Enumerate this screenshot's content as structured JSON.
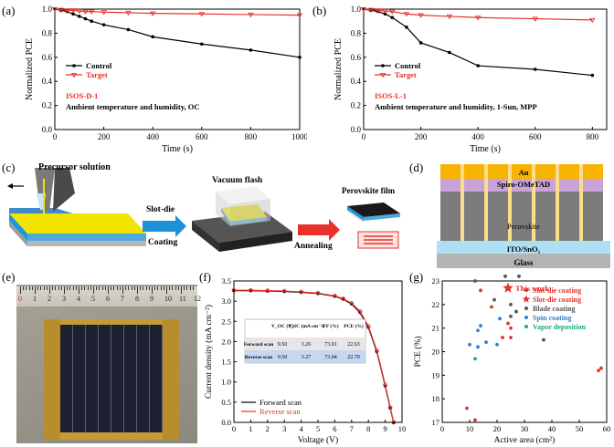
{
  "panels": {
    "a": {
      "label": "(a)"
    },
    "b": {
      "label": "(b)"
    },
    "c": {
      "label": "(c)"
    },
    "d": {
      "label": "(d)"
    },
    "e": {
      "label": "(e)"
    },
    "f": {
      "label": "(f)"
    },
    "g": {
      "label": "(g)"
    }
  },
  "panel_c": {
    "precursor": "Precursor solution",
    "vacuum": "Vacuum flash",
    "slot_die": "Slot-die",
    "coating": "Coating",
    "annealing": "Annealing",
    "film": "Perovskite film"
  },
  "panel_d": {
    "layers": [
      "Au",
      "Spiro-OMeTAD",
      "Perovskite",
      "ITO/SnO₂",
      "Glass"
    ]
  },
  "panel_e": {
    "ruler_numbers": [
      "0",
      "1",
      "2",
      "3",
      "4",
      "5",
      "6",
      "7",
      "8",
      "9",
      "10",
      "11",
      "12"
    ]
  },
  "colors": {
    "control": "#000000",
    "target": "#e8312a",
    "accent_red": "#e8312a"
  },
  "chart_data": [
    {
      "type": "line",
      "panel": "a",
      "xlabel": "Time (s)",
      "ylabel": "Normalized PCE",
      "xlim": [
        0,
        1000
      ],
      "ylim": [
        0.0,
        1.0
      ],
      "xticks": [
        "0",
        "200",
        "400",
        "600",
        "800",
        "1000"
      ],
      "yticks": [
        "0.0",
        "0.2",
        "0.4",
        "0.6",
        "0.8",
        "1.0"
      ],
      "annotation_title": "ISOS-D-1",
      "annotation_sub": "Ambient temperature and humidity, OC",
      "series": [
        {
          "name": "Control",
          "x": [
            0,
            25,
            50,
            75,
            100,
            125,
            150,
            200,
            300,
            400,
            600,
            800,
            1000
          ],
          "y": [
            1.0,
            0.99,
            0.98,
            0.96,
            0.94,
            0.92,
            0.9,
            0.87,
            0.83,
            0.77,
            0.71,
            0.66,
            0.6
          ]
        },
        {
          "name": "Target",
          "x": [
            0,
            25,
            50,
            75,
            100,
            125,
            150,
            200,
            300,
            400,
            600,
            800,
            1000
          ],
          "y": [
            1.0,
            0.995,
            0.99,
            0.99,
            0.985,
            0.98,
            0.98,
            0.975,
            0.97,
            0.965,
            0.96,
            0.955,
            0.95
          ]
        }
      ]
    },
    {
      "type": "line",
      "panel": "b",
      "xlabel": "Time (s)",
      "ylabel": "Normalized PCE",
      "xlim": [
        0,
        850
      ],
      "ylim": [
        0.0,
        1.0
      ],
      "xticks": [
        "0",
        "200",
        "400",
        "600",
        "800"
      ],
      "yticks": [
        "0.0",
        "0.2",
        "0.4",
        "0.6",
        "0.8",
        "1.0"
      ],
      "annotation_title": "ISOS-L-1",
      "annotation_sub": "Ambient temperature and humidity, 1-Sun, MPP",
      "series": [
        {
          "name": "Control",
          "x": [
            0,
            25,
            50,
            75,
            100,
            150,
            200,
            300,
            400,
            600,
            800
          ],
          "y": [
            1.0,
            0.99,
            0.98,
            0.96,
            0.93,
            0.85,
            0.72,
            0.64,
            0.53,
            0.5,
            0.45
          ]
        },
        {
          "name": "Target",
          "x": [
            0,
            25,
            50,
            75,
            100,
            150,
            200,
            300,
            400,
            600,
            800
          ],
          "y": [
            1.0,
            0.995,
            0.99,
            0.985,
            0.98,
            0.96,
            0.95,
            0.94,
            0.93,
            0.92,
            0.91
          ]
        }
      ]
    },
    {
      "type": "line",
      "panel": "f",
      "xlabel": "Voltage (V)",
      "ylabel": "Current density (mA cm⁻²)",
      "xlim": [
        0,
        10
      ],
      "ylim": [
        0.0,
        3.5
      ],
      "xticks": [
        "0",
        "1",
        "2",
        "3",
        "4",
        "5",
        "6",
        "7",
        "8",
        "9",
        "10"
      ],
      "yticks": [
        "0.0",
        "0.5",
        "1.0",
        "1.5",
        "2.0",
        "2.5",
        "3.0",
        "3.5"
      ],
      "series": [
        {
          "name": "Forward scan",
          "x": [
            0,
            1,
            2,
            3,
            4,
            5,
            6,
            6.5,
            7,
            7.5,
            8,
            8.5,
            9,
            9.3,
            9.5
          ],
          "y": [
            3.26,
            3.26,
            3.25,
            3.24,
            3.22,
            3.19,
            3.12,
            3.05,
            2.93,
            2.72,
            2.35,
            1.75,
            0.9,
            0.35,
            0.0
          ]
        },
        {
          "name": "Reverse scan",
          "x": [
            0,
            1,
            2,
            3,
            4,
            5,
            6,
            6.5,
            7,
            7.5,
            8,
            8.5,
            9,
            9.3,
            9.5
          ],
          "y": [
            3.27,
            3.27,
            3.26,
            3.25,
            3.23,
            3.2,
            3.13,
            3.06,
            2.95,
            2.75,
            2.38,
            1.78,
            0.93,
            0.37,
            0.0
          ]
        }
      ],
      "table": {
        "headers": [
          "",
          "V_OC (V)",
          "J_SC (mA cm⁻²)",
          "FF (%)",
          "PCE (%)"
        ],
        "rows": [
          [
            "Forward scan",
            "9.50",
            "3.26",
            "73.01",
            "22.63"
          ],
          [
            "Reverse scan",
            "9.50",
            "3.27",
            "73.04",
            "22.70"
          ]
        ]
      }
    },
    {
      "type": "scatter",
      "panel": "g",
      "xlabel": "Active area (cm²)",
      "ylabel": "PCE (%)",
      "xlim": [
        0,
        60
      ],
      "ylim": [
        17,
        23
      ],
      "xticks": [
        "0",
        "10",
        "20",
        "30",
        "40",
        "50",
        "60"
      ],
      "yticks": [
        "17",
        "18",
        "19",
        "20",
        "21",
        "22",
        "23"
      ],
      "annotation": "This work",
      "series": [
        {
          "name": "Slot-die coating",
          "marker": "circle",
          "color": "#e8312a",
          "x": [
            9,
            12,
            14,
            18,
            22,
            24,
            25,
            25,
            57,
            58
          ],
          "y": [
            17.6,
            17.1,
            22.6,
            21.9,
            20.6,
            21.2,
            21.0,
            20.6,
            19.2,
            19.3
          ]
        },
        {
          "name": "Slot-die coating",
          "marker": "star",
          "color": "#e8312a",
          "x": [
            24
          ],
          "y": [
            22.7
          ]
        },
        {
          "name": "Blade coating",
          "marker": "circle",
          "color": "#555555",
          "x": [
            12,
            19,
            23,
            25,
            27,
            28,
            37,
            25
          ],
          "y": [
            23.0,
            22.2,
            23.2,
            22.0,
            21.7,
            23.2,
            20.5,
            21.5
          ]
        },
        {
          "name": "Spin coating",
          "marker": "circle",
          "color": "#2f7fd1",
          "x": [
            10,
            13,
            13,
            14,
            16,
            20,
            21
          ],
          "y": [
            20.3,
            20.9,
            20.2,
            21.1,
            20.4,
            20.3,
            21.4
          ]
        },
        {
          "name": "Vapor deposition",
          "marker": "circle",
          "color": "#1aa97a",
          "x": [
            12
          ],
          "y": [
            19.7
          ]
        }
      ]
    }
  ]
}
